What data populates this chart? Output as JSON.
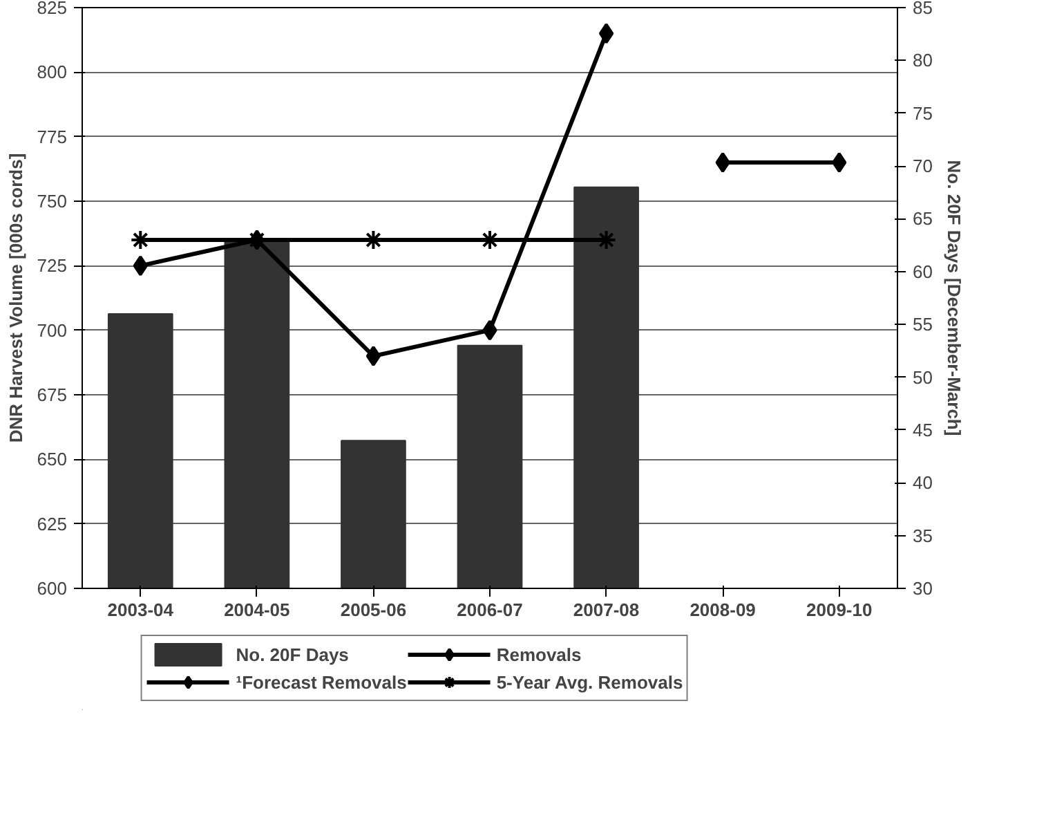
{
  "chart_data": {
    "type": "bar",
    "categories": [
      "2003-04",
      "2004-05",
      "2005-06",
      "2006-07",
      "2007-08",
      "2008-09",
      "2009-10"
    ],
    "ylabel": "DNR Harvest Volume [000s cords]",
    "y2label": "No. 20F Days [December-March]",
    "ylim": [
      600,
      825
    ],
    "yticks": [
      600,
      625,
      650,
      675,
      700,
      725,
      750,
      775,
      800,
      825
    ],
    "y2lim": [
      30,
      85
    ],
    "y2ticks": [
      30,
      35,
      40,
      45,
      50,
      55,
      60,
      65,
      70,
      75,
      80,
      85
    ],
    "grid": "y",
    "legend": "bottom",
    "series": [
      {
        "name": "No. 20F Days",
        "type": "bar",
        "axis": "y2",
        "color": "#333333",
        "values": [
          56,
          63,
          44,
          53,
          68,
          null,
          null
        ]
      },
      {
        "name": "Removals",
        "type": "line",
        "color": "#000000",
        "marker": "diamond",
        "values": [
          725,
          735,
          690,
          700,
          815,
          null,
          null
        ]
      },
      {
        "name": "¹Forecast Removals",
        "type": "line",
        "color": "#000000",
        "marker": "diamond",
        "values": [
          null,
          null,
          null,
          null,
          null,
          765,
          765
        ]
      },
      {
        "name": "5-Year Avg. Removals",
        "type": "line",
        "color": "#000000",
        "marker": "cross",
        "values": [
          735,
          735,
          735,
          735,
          735,
          null,
          null
        ]
      }
    ]
  }
}
